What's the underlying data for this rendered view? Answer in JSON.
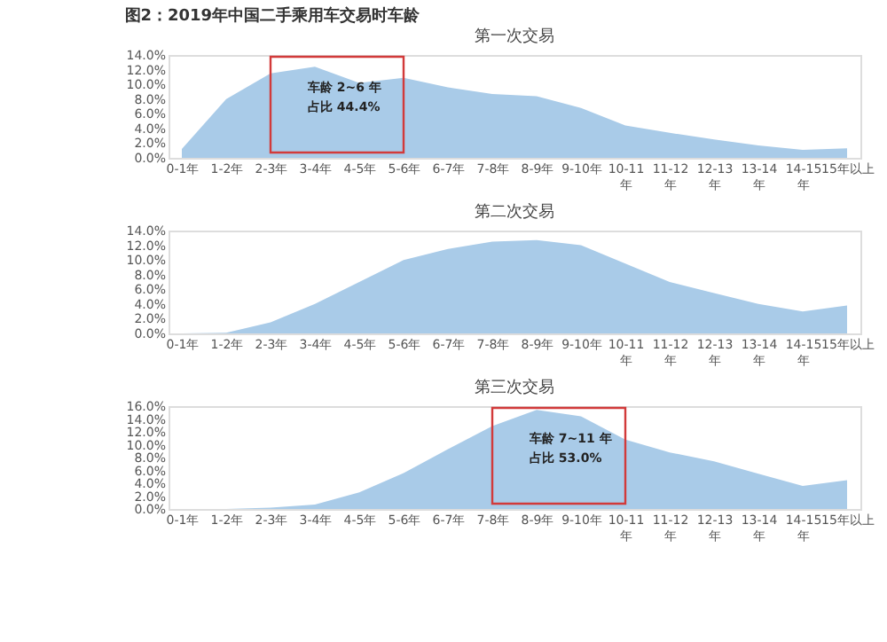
{
  "chart_data": [
    {
      "type": "area",
      "title": "图2：2019年中国二手乘用车交易时车龄",
      "subtitle": "第一次交易",
      "categories": [
        "0-1年",
        "1-2年",
        "2-3年",
        "3-4年",
        "4-5年",
        "5-6年",
        "6-7年",
        "7-8年",
        "8-9年",
        "9-10年",
        "10-11年",
        "11-12年",
        "12-13年",
        "13-14年",
        "14-15年",
        "15年以上"
      ],
      "series": [
        {
          "color": "#a9cbe8",
          "values": [
            1.2,
            8.0,
            11.5,
            12.4,
            10.2,
            10.9,
            9.6,
            8.7,
            8.4,
            6.8,
            4.4,
            3.4,
            2.5,
            1.7,
            1.1,
            1.3
          ]
        }
      ],
      "ylim": [
        0,
        14
      ],
      "yticks": [
        {
          "value": 0,
          "label": "0.0%"
        },
        {
          "value": 2,
          "label": "2.0%"
        },
        {
          "value": 4,
          "label": "4.0%"
        },
        {
          "value": 6,
          "label": "6.0%"
        },
        {
          "value": 8,
          "label": "8.0%"
        },
        {
          "value": 10,
          "label": "10.0%"
        },
        {
          "value": 12,
          "label": "12.0%"
        },
        {
          "value": 14,
          "label": "14.0%"
        }
      ],
      "annotations": [
        "车龄 2~6 年",
        "占比 44.4%"
      ],
      "grid": false
    },
    {
      "type": "area",
      "title": "第二次交易",
      "categories": [
        "0-1年",
        "1-2年",
        "2-3年",
        "3-4年",
        "4-5年",
        "5-6年",
        "6-7年",
        "7-8年",
        "8-9年",
        "9-10年",
        "10-11年",
        "11-12年",
        "12-13年",
        "13-14年",
        "14-15年",
        "15年以上"
      ],
      "series": [
        {
          "color": "#a9cbe8",
          "values": [
            0,
            0.1,
            1.5,
            4.0,
            7.0,
            10.0,
            11.5,
            12.5,
            12.7,
            12.0,
            9.5,
            7.0,
            5.5,
            4.0,
            3.0,
            3.8
          ]
        }
      ],
      "ylim": [
        0,
        14
      ],
      "yticks": [
        {
          "value": 0,
          "label": "0.0%"
        },
        {
          "value": 2,
          "label": "2.0%"
        },
        {
          "value": 4,
          "label": "4.0%"
        },
        {
          "value": 6,
          "label": "6.0%"
        },
        {
          "value": 8,
          "label": "8.0%"
        },
        {
          "value": 10,
          "label": "10.0%"
        },
        {
          "value": 12,
          "label": "12.0%"
        },
        {
          "value": 14,
          "label": "14.0%"
        }
      ],
      "grid": false
    },
    {
      "type": "area",
      "title": "第三次交易",
      "categories": [
        "0-1年",
        "1-2年",
        "2-3年",
        "3-4年",
        "4-5年",
        "5-6年",
        "6-7年",
        "7-8年",
        "8-9年",
        "9-10年",
        "10-11年",
        "11-12年",
        "12-13年",
        "13-14年",
        "14-15年",
        "15年以上"
      ],
      "series": [
        {
          "color": "#a9cbe8",
          "values": [
            0,
            0,
            0.2,
            0.7,
            2.6,
            5.6,
            9.3,
            12.9,
            15.4,
            14.4,
            10.8,
            8.8,
            7.4,
            5.5,
            3.6,
            4.5
          ]
        }
      ],
      "ylim": [
        0,
        16
      ],
      "yticks": [
        {
          "value": 0,
          "label": "0.0%"
        },
        {
          "value": 2,
          "label": "2.0%"
        },
        {
          "value": 4,
          "label": "4.0%"
        },
        {
          "value": 6,
          "label": "6.0%"
        },
        {
          "value": 8,
          "label": "8.0%"
        },
        {
          "value": 10,
          "label": "10.0%"
        },
        {
          "value": 12,
          "label": "12.0%"
        },
        {
          "value": 14,
          "label": "14.0%"
        },
        {
          "value": 16,
          "label": "16.0%"
        }
      ],
      "annotations": [
        "车龄 7~11 年",
        "占比 53.0%"
      ],
      "grid": false
    }
  ]
}
